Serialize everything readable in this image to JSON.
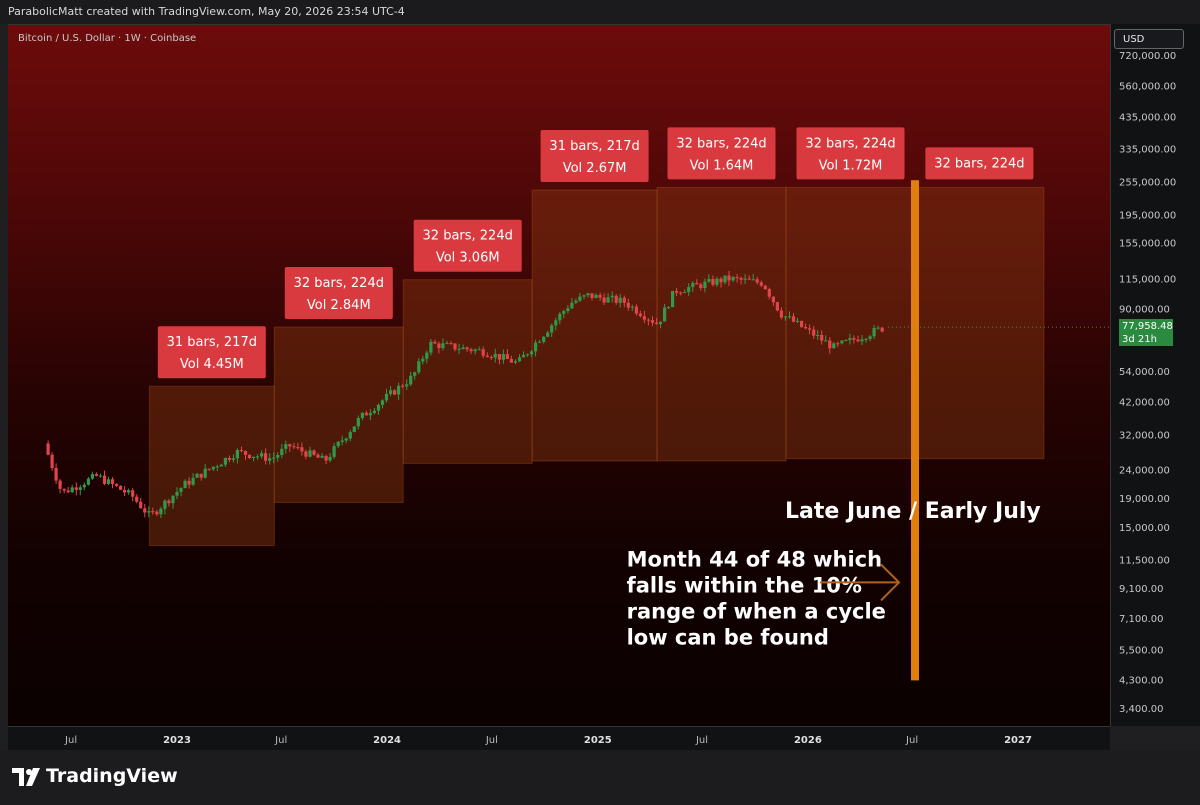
{
  "header": {
    "caption": "ParabolicMatt created with TradingView.com, May 20, 2026 23:54 UTC-4"
  },
  "chart": {
    "subtitle": "Bitcoin / U.S. Dollar · 1W · Coinbase",
    "currency_button": "USD"
  },
  "price_tag": {
    "price": "77,958.48",
    "time": "3d 21h"
  },
  "annotations": {
    "late_june": "Late June / Early July",
    "month_note": [
      "Month 44 of 48 which",
      "falls within the 10%",
      "range of when a cycle",
      "low can be found"
    ]
  },
  "footer": {
    "brand": "TradingView"
  },
  "colors": {
    "label_bg": "#d93a3f",
    "range_fill": "#8a3a10",
    "vertical_line": "#e07f10",
    "up": "#2f9a4a",
    "down": "#e0454b"
  },
  "chart_data": {
    "type": "candlestick",
    "title": "Bitcoin / U.S. Dollar · 1W · Coinbase",
    "y_scale": "log",
    "y_ticks": [
      "720,000.00",
      "560,000.00",
      "435,000.00",
      "335,000.00",
      "255,000.00",
      "195,000.00",
      "155,000.00",
      "115,000.00",
      "90,000.00",
      "54,000.00",
      "42,000.00",
      "32,000.00",
      "24,000.00",
      "19,000.00",
      "15,000.00",
      "11,500.00",
      "9,100.00",
      "7,100.00",
      "5,500.00",
      "4,300.00",
      "3,400.00"
    ],
    "x_ticks": [
      "Jul",
      "2023",
      "Jul",
      "2024",
      "Jul",
      "2025",
      "Jul",
      "2026",
      "Jul",
      "2027"
    ],
    "price_path": [
      [
        "2022-05",
        30000
      ],
      [
        "2022-06",
        20000
      ],
      [
        "2022-08",
        23000
      ],
      [
        "2022-10",
        19500
      ],
      [
        "2022-11",
        16500
      ],
      [
        "2023-01",
        21500
      ],
      [
        "2023-04",
        28000
      ],
      [
        "2023-06",
        26500
      ],
      [
        "2023-07",
        29500
      ],
      [
        "2023-09",
        26000
      ],
      [
        "2023-11",
        37000
      ],
      [
        "2024-02",
        52000
      ],
      [
        "2024-03",
        68000
      ],
      [
        "2024-06",
        64000
      ],
      [
        "2024-08",
        58000
      ],
      [
        "2024-11",
        95000
      ],
      [
        "2024-12",
        101000
      ],
      [
        "2025-02",
        96000
      ],
      [
        "2025-04",
        80000
      ],
      [
        "2025-05",
        105000
      ],
      [
        "2025-08",
        116000
      ],
      [
        "2025-10",
        112000
      ],
      [
        "2025-11",
        87000
      ],
      [
        "2026-02",
        66000
      ],
      [
        "2026-05",
        77958
      ]
    ],
    "ranges": [
      {
        "bars": "31 bars, 217d",
        "vol": "Vol 4.45M",
        "x0": "2022-11-14",
        "x1": "2023-06-19",
        "low": 13000,
        "high": 48000
      },
      {
        "bars": "32 bars, 224d",
        "vol": "Vol 2.84M",
        "x0": "2023-06-19",
        "x1": "2024-01-29",
        "low": 18500,
        "high": 78000
      },
      {
        "bars": "32 bars, 224d",
        "vol": "Vol 3.06M",
        "x0": "2024-01-29",
        "x1": "2024-09-09",
        "low": 25500,
        "high": 115000
      },
      {
        "bars": "31 bars, 217d",
        "vol": "Vol 2.67M",
        "x0": "2024-09-09",
        "x1": "2025-04-14",
        "low": 26000,
        "high": 240000
      },
      {
        "bars": "32 bars, 224d",
        "vol": "Vol 1.64M",
        "x0": "2025-04-14",
        "x1": "2025-11-24",
        "low": 26000,
        "high": 245000
      },
      {
        "bars": "32 bars, 224d",
        "vol": "Vol 1.72M",
        "x0": "2025-11-24",
        "x1": "2026-07-06",
        "low": 26500,
        "high": 245000
      },
      {
        "bars": "32 bars, 224d",
        "vol": "",
        "x0": "2026-07-06",
        "x1": "2027-02-15",
        "low": 26500,
        "high": 245000
      }
    ],
    "vertical_marker": {
      "date": "2026-07-06",
      "from": 4300,
      "to": 260000
    },
    "last_price": 77958.48
  }
}
